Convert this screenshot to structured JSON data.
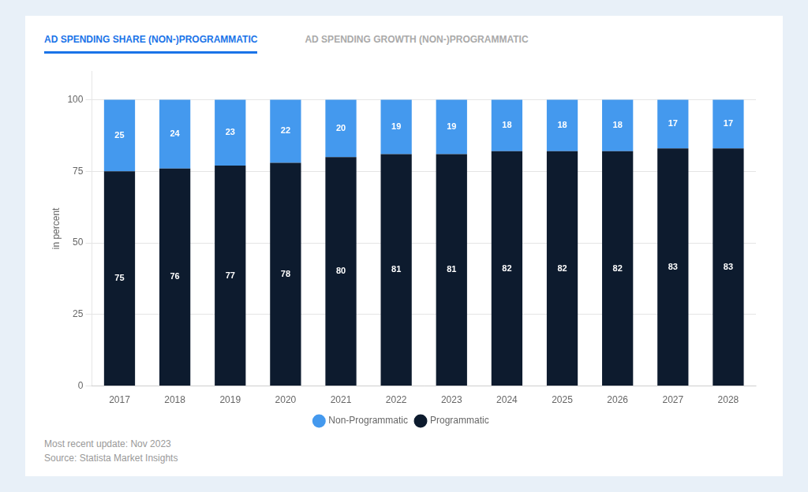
{
  "chart_data": {
    "type": "bar",
    "title": "AD SPENDING SHARE (NON-)PROGRAMMATIC",
    "annotations": [
      "AD SPENDING GROWTH (NON-)PROGRAMMATIC",
      "Most recent update: Nov 2023",
      "Source: Statista Market Insights"
    ],
    "categories": [
      "2017",
      "2018",
      "2019",
      "2020",
      "2021",
      "2022",
      "2023",
      "2024",
      "2025",
      "2026",
      "2027",
      "2028"
    ],
    "series": [
      {
        "name": "Programmatic",
        "color": "#0d1b2e",
        "values": [
          75,
          76,
          77,
          78,
          80,
          81,
          81,
          82,
          82,
          82,
          83,
          83
        ]
      },
      {
        "name": "Non-Programmatic",
        "color": "#4499ee",
        "values": [
          25,
          24,
          23,
          22,
          20,
          19,
          19,
          18,
          18,
          18,
          17,
          17
        ]
      }
    ],
    "ylabel": "in percent",
    "ylim": [
      0,
      110
    ],
    "yticks": [
      0,
      25,
      50,
      75,
      100
    ],
    "grid": "y",
    "legend": "bottom",
    "stacked": true,
    "data_labels": true
  }
}
